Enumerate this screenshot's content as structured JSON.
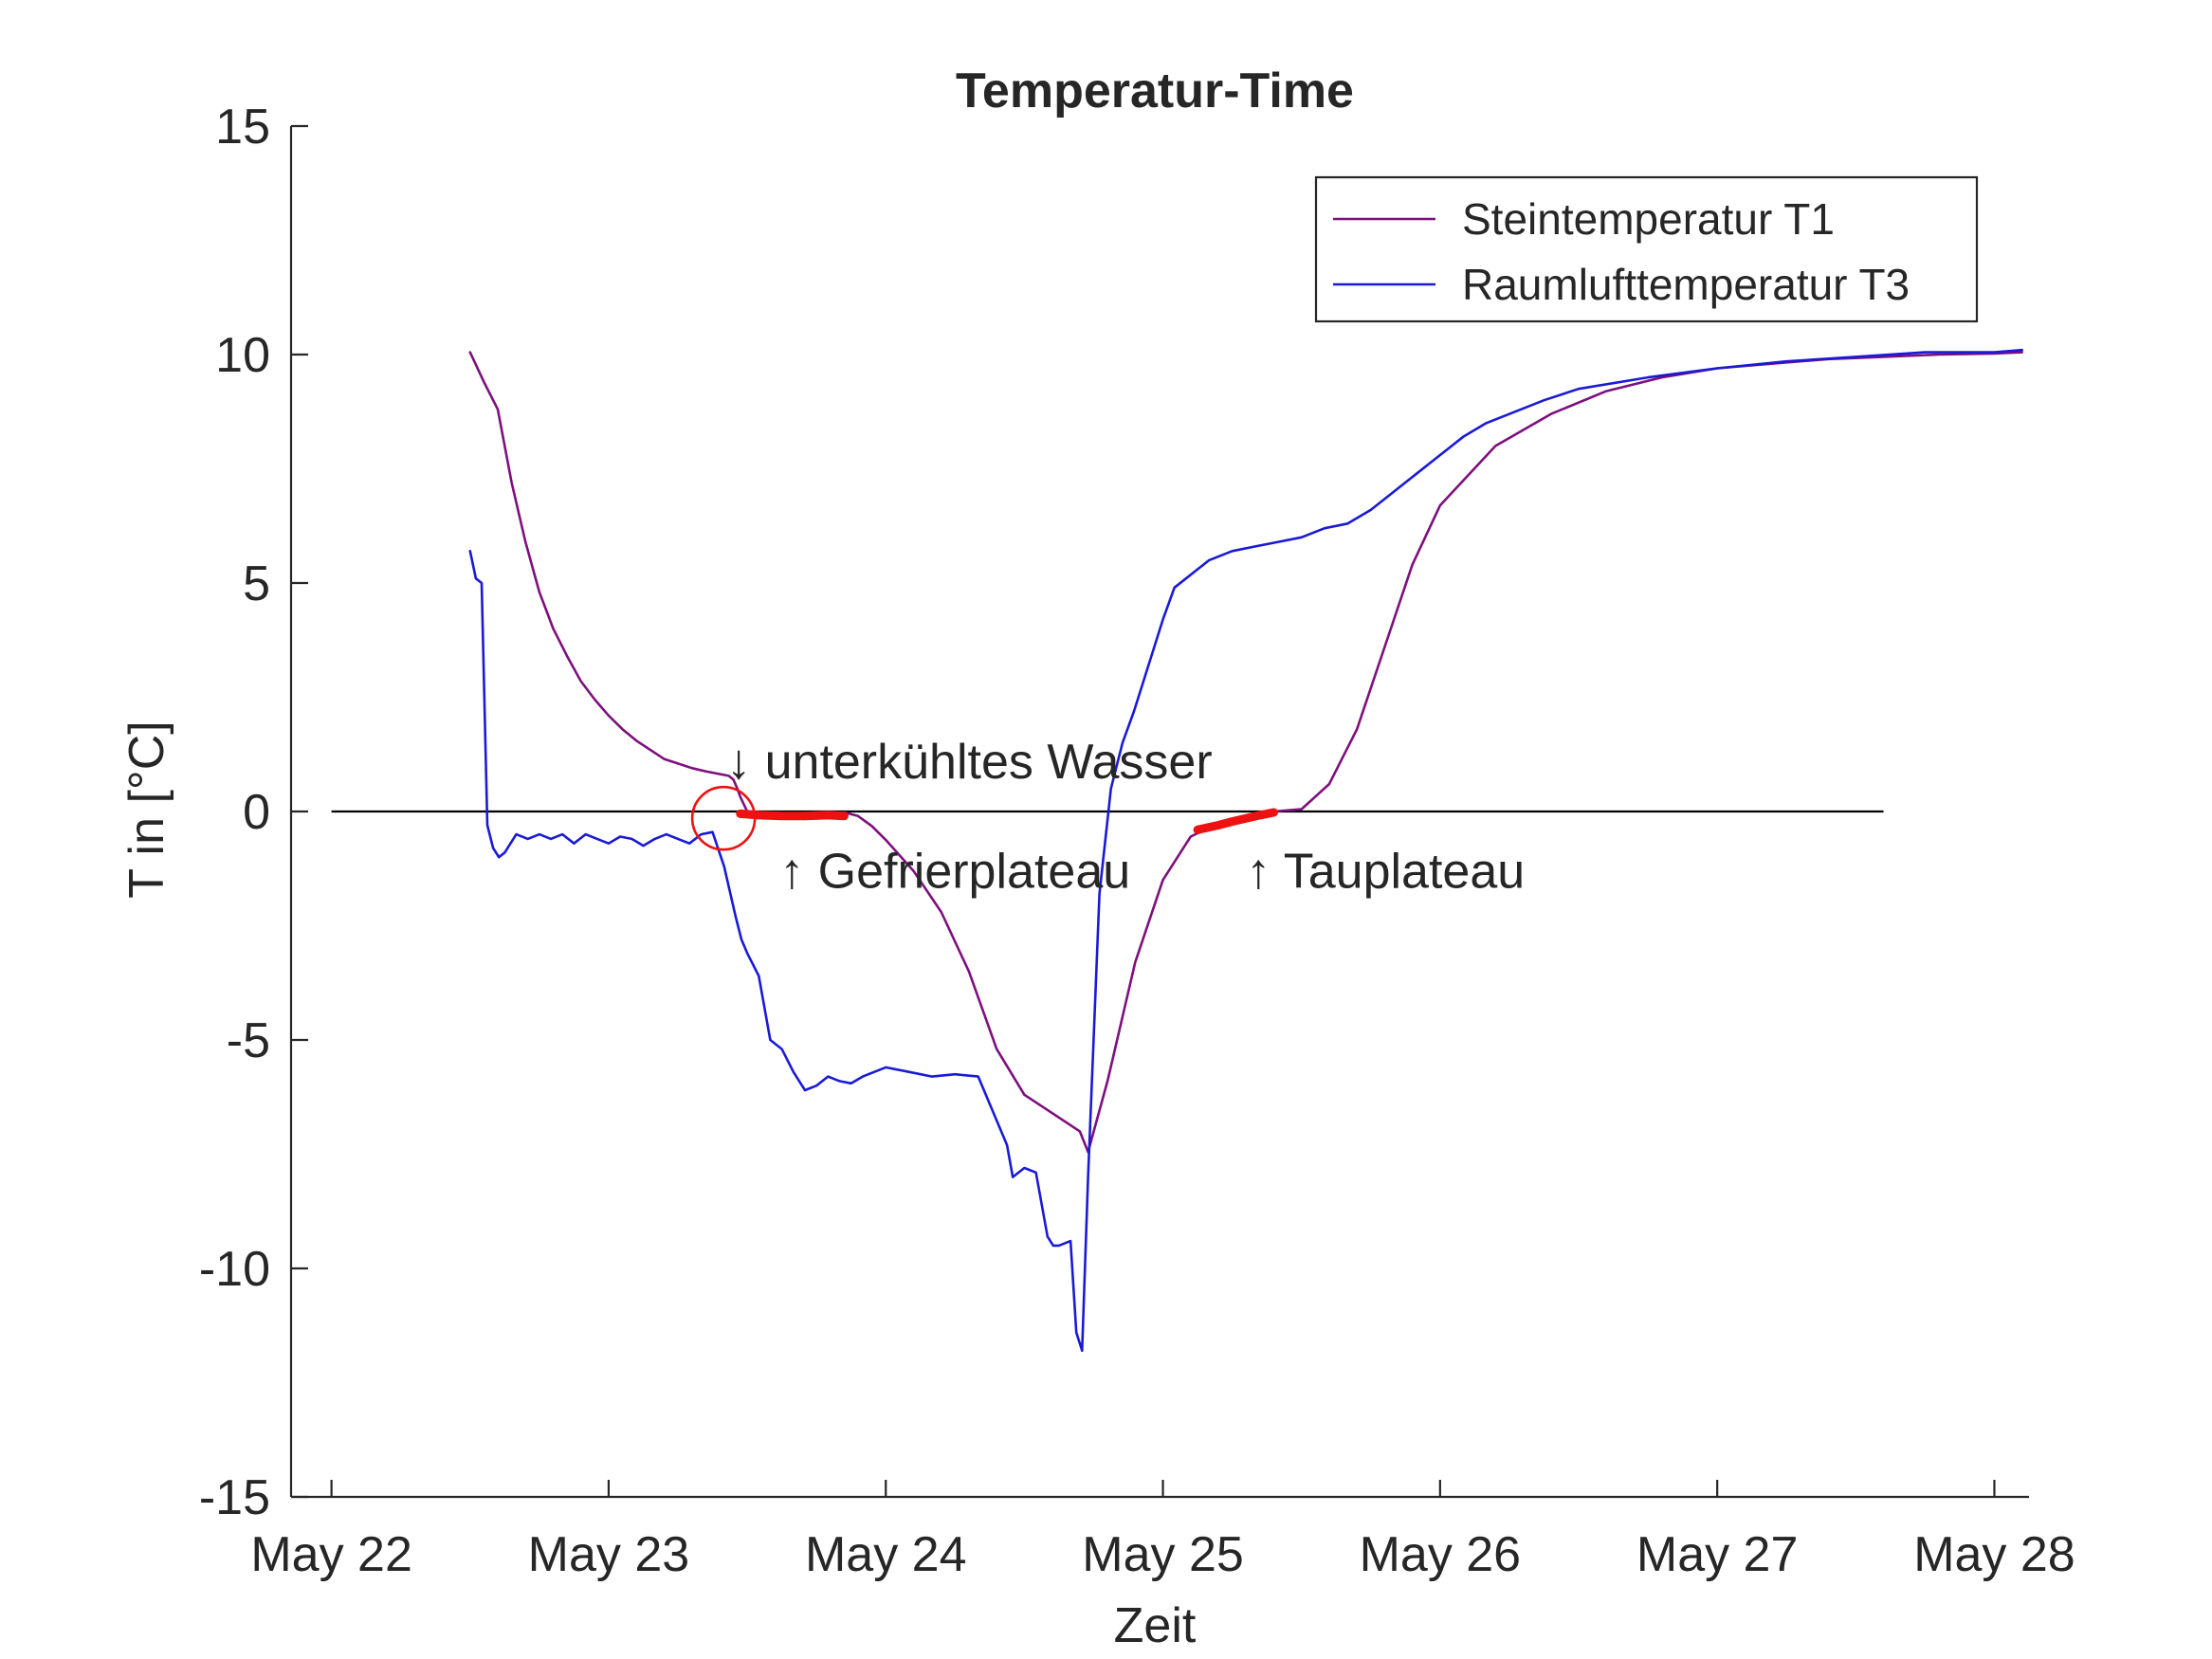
{
  "chart_data": {
    "type": "line",
    "title": "Temperatur-Time",
    "xlabel": "Zeit",
    "ylabel": "T in [°C]",
    "xlim": [
      "May 21 20:30",
      "May 28 03:00"
    ],
    "ylim": [
      -15,
      15
    ],
    "x_ticks": [
      "May 22",
      "May 23",
      "May 24",
      "May 25",
      "May 26",
      "May 27",
      "May 28"
    ],
    "y_ticks": [
      -15,
      -10,
      -5,
      0,
      5,
      10,
      15
    ],
    "legend_position": "top-right",
    "colors": {
      "T1": "#7e0f7e",
      "T3": "#1a1ad6",
      "highlight": "#ee1111",
      "zero_line": "#000000"
    },
    "series": [
      {
        "name": "Steintemperatur T1",
        "color": "#7e0f7e",
        "x": [
          "May 22 12:00",
          "May 22 13:12",
          "May 22 14:24",
          "May 22 15:36",
          "May 22 16:48",
          "May 22 18:00",
          "May 22 19:12",
          "May 22 20:24",
          "May 22 21:36",
          "May 22 22:48",
          "May 23 00:00",
          "May 23 01:12",
          "May 23 02:24",
          "May 23 03:36",
          "May 23 04:48",
          "May 23 06:00",
          "May 23 07:12",
          "May 23 08:24",
          "May 23 09:36",
          "May 23 10:24",
          "May 23 10:48",
          "May 23 11:09",
          "May 23 11:24",
          "May 23 12:00",
          "May 23 14:24",
          "May 23 16:48",
          "May 23 19:12",
          "May 23 20:24",
          "May 23 21:36",
          "May 23 22:48",
          "May 24 00:00",
          "May 24 02:24",
          "May 24 04:48",
          "May 24 07:12",
          "May 24 09:36",
          "May 24 12:00",
          "May 24 14:24",
          "May 24 16:48",
          "May 24 17:31",
          "May 24 19:12",
          "May 24 21:36",
          "May 25 00:00",
          "May 25 02:24",
          "May 25 04:48",
          "May 25 07:12",
          "May 25 09:36",
          "May 25 12:00",
          "May 25 14:24",
          "May 25 16:48",
          "May 25 19:12",
          "May 25 21:36",
          "May 26 00:00",
          "May 26 04:48",
          "May 26 09:36",
          "May 26 14:24",
          "May 26 19:12",
          "May 27 00:00",
          "May 27 04:48",
          "May 27 09:36",
          "May 27 14:24",
          "May 27 19:12",
          "May 28 00:00",
          "May 28 02:24"
        ],
        "y": [
          10.05,
          9.4,
          8.8,
          7.2,
          5.9,
          4.8,
          4.0,
          3.4,
          2.85,
          2.45,
          2.1,
          1.8,
          1.55,
          1.35,
          1.15,
          1.05,
          0.95,
          0.88,
          0.82,
          0.78,
          0.7,
          0.5,
          0.32,
          0.0,
          -0.1,
          -0.1,
          -0.08,
          -0.02,
          -0.1,
          -0.32,
          -0.62,
          -1.3,
          -2.2,
          -3.5,
          -5.2,
          -6.2,
          -6.6,
          -7.0,
          -7.45,
          -5.9,
          -3.3,
          -1.5,
          -0.55,
          -0.25,
          -0.1,
          0.0,
          0.05,
          0.6,
          1.8,
          3.6,
          5.4,
          6.7,
          8.0,
          8.7,
          9.2,
          9.5,
          9.7,
          9.8,
          9.9,
          9.95,
          10.0,
          10.02,
          10.05
        ]
      },
      {
        "name": "Raumlufttemperatur T3",
        "color": "#1a1ad6",
        "x": [
          "May 22 12:00",
          "May 22 12:30",
          "May 22 13:00",
          "May 22 13:30",
          "May 22 14:00",
          "May 22 14:30",
          "May 22 15:00",
          "May 22 15:30",
          "May 22 16:00",
          "May 22 17:00",
          "May 22 18:00",
          "May 22 19:00",
          "May 22 20:00",
          "May 22 21:00",
          "May 22 22:00",
          "May 22 23:00",
          "May 23 00:00",
          "May 23 01:00",
          "May 23 02:00",
          "May 23 03:00",
          "May 23 04:00",
          "May 23 05:00",
          "May 23 06:00",
          "May 23 07:00",
          "May 23 08:00",
          "May 23 09:00",
          "May 23 10:00",
          "May 23 11:00",
          "May 23 11:30",
          "May 23 12:00",
          "May 23 13:00",
          "May 23 14:00",
          "May 23 15:00",
          "May 23 16:00",
          "May 23 17:00",
          "May 23 18:00",
          "May 23 19:00",
          "May 23 20:00",
          "May 23 21:00",
          "May 23 22:00",
          "May 24 00:00",
          "May 24 02:00",
          "May 24 04:00",
          "May 24 06:00",
          "May 24 08:00",
          "May 24 09:30",
          "May 24 10:30",
          "May 24 11:00",
          "May 24 12:00",
          "May 24 13:00",
          "May 24 14:00",
          "May 24 14:30",
          "May 24 15:00",
          "May 24 16:00",
          "May 24 16:30",
          "May 24 17:00",
          "May 24 17:31",
          "May 24 18:30",
          "May 24 19:30",
          "May 24 20:30",
          "May 24 21:30",
          "May 24 22:30",
          "May 25 00:00",
          "May 25 01:00",
          "May 25 02:00",
          "May 25 03:00",
          "May 25 04:00",
          "May 25 06:00",
          "May 25 08:00",
          "May 25 10:00",
          "May 25 12:00",
          "May 25 14:00",
          "May 25 16:00",
          "May 25 18:00",
          "May 25 20:00",
          "May 25 22:00",
          "May 26 00:00",
          "May 26 02:00",
          "May 26 04:00",
          "May 26 06:00",
          "May 26 09:00",
          "May 26 12:00",
          "May 26 18:00",
          "May 27 00:00",
          "May 27 06:00",
          "May 27 12:00",
          "May 27 18:00",
          "May 28 00:00",
          "May 28 02:24"
        ],
        "y": [
          5.7,
          5.1,
          5.0,
          -0.3,
          -0.8,
          -1.0,
          -0.9,
          -0.7,
          -0.5,
          -0.6,
          -0.5,
          -0.6,
          -0.5,
          -0.7,
          -0.5,
          -0.6,
          -0.7,
          -0.55,
          -0.6,
          -0.75,
          -0.6,
          -0.5,
          -0.6,
          -0.7,
          -0.5,
          -0.45,
          -1.2,
          -2.3,
          -2.8,
          -3.1,
          -3.6,
          -5.0,
          -5.2,
          -5.7,
          -6.1,
          -6.0,
          -5.8,
          -5.9,
          -5.95,
          -5.8,
          -5.6,
          -5.7,
          -5.8,
          -5.75,
          -5.8,
          -6.7,
          -7.3,
          -8.0,
          -7.8,
          -7.9,
          -9.3,
          -9.5,
          -9.5,
          -9.4,
          -11.4,
          -11.8,
          -8.0,
          -1.8,
          0.5,
          1.5,
          2.2,
          3.0,
          4.2,
          4.9,
          5.1,
          5.3,
          5.5,
          5.7,
          5.8,
          5.9,
          6.0,
          6.2,
          6.3,
          6.6,
          7.0,
          7.4,
          7.8,
          8.2,
          8.5,
          8.7,
          9.0,
          9.25,
          9.5,
          9.7,
          9.85,
          9.95,
          10.05,
          10.05,
          10.1
        ]
      }
    ],
    "highlights": [
      {
        "color": "#ee1111",
        "x": [
          "May 23 11:24",
          "May 23 13:00",
          "May 23 15:00",
          "May 23 17:00",
          "May 23 19:00",
          "May 23 20:24"
        ],
        "y": [
          -0.05,
          -0.08,
          -0.1,
          -0.1,
          -0.08,
          -0.1
        ]
      },
      {
        "color": "#ee1111",
        "x": [
          "May 25 03:00",
          "May 25 04:48",
          "May 25 06:00",
          "May 25 07:12",
          "May 25 08:24",
          "May 25 09:36"
        ],
        "y": [
          -0.4,
          -0.3,
          -0.22,
          -0.15,
          -0.08,
          -0.02
        ]
      }
    ],
    "circle_marker": {
      "x": "May 23 09:57",
      "y": -0.15,
      "color": "#ee1111"
    },
    "reference_line": {
      "y": 0,
      "x": [
        "May 22 00:00",
        "May 27 14:24"
      ],
      "color": "#000000"
    },
    "annotations": [
      {
        "text": "↓ unterkühltes Wasser",
        "x": "May 23 10:12",
        "y": 1.1
      },
      {
        "text": "↑ Gefrierplateau",
        "x": "May 23 14:48",
        "y": -1.3
      },
      {
        "text": "↑ Tauplateau",
        "x": "May 25 07:12",
        "y": -1.3
      }
    ]
  }
}
